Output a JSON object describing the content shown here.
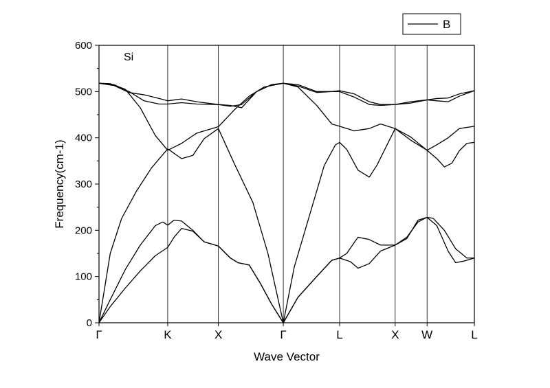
{
  "chart_data": {
    "type": "line",
    "xlabel": "Wave Vector",
    "ylabel": "Frequency(cm-1)",
    "annotation": "Si",
    "legend": {
      "placement": "top-right",
      "entries": [
        "B"
      ]
    },
    "ylim": [
      0,
      600
    ],
    "yticks": [
      0,
      100,
      200,
      300,
      400,
      500,
      600
    ],
    "xlim": [
      0,
      1
    ],
    "kpoints": [
      {
        "label": "Γ",
        "x": 0.0
      },
      {
        "label": "K",
        "x": 0.183
      },
      {
        "label": "X",
        "x": 0.318
      },
      {
        "label": "Γ",
        "x": 0.491
      },
      {
        "label": "L",
        "x": 0.641
      },
      {
        "label": "X",
        "x": 0.789
      },
      {
        "label": "W",
        "x": 0.874
      },
      {
        "label": "L",
        "x": 1.0
      }
    ],
    "grid": false,
    "series": [
      {
        "values": [
          [
            0.0,
            0
          ],
          [
            0.03,
            35
          ],
          [
            0.07,
            75
          ],
          [
            0.11,
            112
          ],
          [
            0.15,
            145
          ],
          [
            0.183,
            163
          ],
          [
            0.2,
            185
          ],
          [
            0.22,
            204
          ],
          [
            0.25,
            198
          ],
          [
            0.28,
            175
          ],
          [
            0.318,
            166
          ],
          [
            0.35,
            140
          ],
          [
            0.37,
            130
          ],
          [
            0.4,
            125
          ],
          [
            0.43,
            85
          ],
          [
            0.46,
            40
          ],
          [
            0.491,
            0
          ],
          [
            0.53,
            55
          ],
          [
            0.58,
            100
          ],
          [
            0.62,
            135
          ],
          [
            0.641,
            140
          ],
          [
            0.67,
            132
          ],
          [
            0.69,
            118
          ],
          [
            0.72,
            128
          ],
          [
            0.75,
            155
          ],
          [
            0.789,
            168
          ],
          [
            0.82,
            185
          ],
          [
            0.85,
            218
          ],
          [
            0.874,
            228
          ],
          [
            0.9,
            210
          ],
          [
            0.93,
            155
          ],
          [
            0.95,
            130
          ],
          [
            0.97,
            133
          ],
          [
            1.0,
            140
          ]
        ]
      },
      {
        "values": [
          [
            0.0,
            0
          ],
          [
            0.03,
            50
          ],
          [
            0.07,
            115
          ],
          [
            0.11,
            168
          ],
          [
            0.15,
            210
          ],
          [
            0.17,
            218
          ],
          [
            0.183,
            211
          ],
          [
            0.2,
            222
          ],
          [
            0.22,
            220
          ],
          [
            0.25,
            200
          ],
          [
            0.28,
            175
          ],
          [
            0.318,
            166
          ],
          [
            0.35,
            140
          ],
          [
            0.37,
            130
          ],
          [
            0.4,
            125
          ],
          [
            0.43,
            85
          ],
          [
            0.46,
            40
          ],
          [
            0.491,
            0
          ],
          [
            0.53,
            55
          ],
          [
            0.58,
            100
          ],
          [
            0.62,
            135
          ],
          [
            0.641,
            140
          ],
          [
            0.66,
            150
          ],
          [
            0.69,
            185
          ],
          [
            0.72,
            180
          ],
          [
            0.75,
            168
          ],
          [
            0.789,
            168
          ],
          [
            0.82,
            182
          ],
          [
            0.85,
            222
          ],
          [
            0.874,
            228
          ],
          [
            0.89,
            226
          ],
          [
            0.92,
            200
          ],
          [
            0.95,
            160
          ],
          [
            0.98,
            140
          ],
          [
            1.0,
            140
          ]
        ]
      },
      {
        "values": [
          [
            0.0,
            0
          ],
          [
            0.03,
            150
          ],
          [
            0.06,
            225
          ],
          [
            0.1,
            285
          ],
          [
            0.14,
            335
          ],
          [
            0.183,
            376
          ],
          [
            0.22,
            355
          ],
          [
            0.25,
            362
          ],
          [
            0.28,
            398
          ],
          [
            0.318,
            420
          ],
          [
            0.36,
            345
          ],
          [
            0.41,
            260
          ],
          [
            0.45,
            150
          ],
          [
            0.491,
            0
          ],
          [
            0.52,
            120
          ],
          [
            0.56,
            230
          ],
          [
            0.6,
            340
          ],
          [
            0.63,
            385
          ],
          [
            0.641,
            390
          ],
          [
            0.66,
            375
          ],
          [
            0.69,
            330
          ],
          [
            0.72,
            315
          ],
          [
            0.74,
            340
          ],
          [
            0.789,
            420
          ],
          [
            0.83,
            402
          ],
          [
            0.874,
            373
          ],
          [
            0.9,
            355
          ],
          [
            0.92,
            337
          ],
          [
            0.94,
            345
          ],
          [
            0.96,
            372
          ],
          [
            0.98,
            388
          ],
          [
            1.0,
            390
          ]
        ]
      },
      {
        "values": [
          [
            0.0,
            518
          ],
          [
            0.03,
            517
          ],
          [
            0.07,
            505
          ],
          [
            0.11,
            465
          ],
          [
            0.15,
            405
          ],
          [
            0.183,
            373
          ],
          [
            0.22,
            388
          ],
          [
            0.26,
            410
          ],
          [
            0.318,
            424
          ],
          [
            0.36,
            460
          ],
          [
            0.4,
            490
          ],
          [
            0.44,
            510
          ],
          [
            0.491,
            518
          ],
          [
            0.53,
            510
          ],
          [
            0.58,
            470
          ],
          [
            0.62,
            430
          ],
          [
            0.641,
            425
          ],
          [
            0.68,
            415
          ],
          [
            0.72,
            420
          ],
          [
            0.75,
            430
          ],
          [
            0.789,
            420
          ],
          [
            0.83,
            395
          ],
          [
            0.874,
            373
          ],
          [
            0.9,
            385
          ],
          [
            0.93,
            400
          ],
          [
            0.96,
            420
          ],
          [
            1.0,
            425
          ]
        ]
      },
      {
        "values": [
          [
            0.0,
            518
          ],
          [
            0.04,
            515
          ],
          [
            0.08,
            500
          ],
          [
            0.12,
            480
          ],
          [
            0.16,
            473
          ],
          [
            0.183,
            473
          ],
          [
            0.22,
            476
          ],
          [
            0.26,
            473
          ],
          [
            0.318,
            472
          ],
          [
            0.35,
            470
          ],
          [
            0.38,
            465
          ],
          [
            0.42,
            500
          ],
          [
            0.46,
            515
          ],
          [
            0.491,
            518
          ],
          [
            0.53,
            515
          ],
          [
            0.58,
            500
          ],
          [
            0.62,
            500
          ],
          [
            0.641,
            500
          ],
          [
            0.68,
            488
          ],
          [
            0.72,
            472
          ],
          [
            0.75,
            470
          ],
          [
            0.789,
            472
          ],
          [
            0.83,
            478
          ],
          [
            0.874,
            482
          ],
          [
            0.9,
            480
          ],
          [
            0.93,
            478
          ],
          [
            0.96,
            490
          ],
          [
            1.0,
            502
          ]
        ]
      },
      {
        "values": [
          [
            0.0,
            518
          ],
          [
            0.04,
            513
          ],
          [
            0.08,
            498
          ],
          [
            0.12,
            493
          ],
          [
            0.16,
            485
          ],
          [
            0.183,
            480
          ],
          [
            0.22,
            484
          ],
          [
            0.26,
            478
          ],
          [
            0.318,
            472
          ],
          [
            0.35,
            468
          ],
          [
            0.38,
            472
          ],
          [
            0.42,
            500
          ],
          [
            0.46,
            515
          ],
          [
            0.491,
            518
          ],
          [
            0.53,
            512
          ],
          [
            0.58,
            498
          ],
          [
            0.62,
            500
          ],
          [
            0.641,
            502
          ],
          [
            0.68,
            495
          ],
          [
            0.72,
            478
          ],
          [
            0.75,
            472
          ],
          [
            0.789,
            472
          ],
          [
            0.83,
            475
          ],
          [
            0.874,
            482
          ],
          [
            0.9,
            485
          ],
          [
            0.93,
            486
          ],
          [
            0.96,
            495
          ],
          [
            1.0,
            502
          ]
        ]
      }
    ]
  }
}
